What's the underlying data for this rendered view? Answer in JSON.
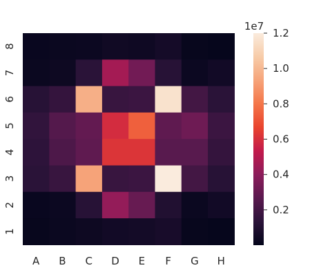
{
  "chart_data": {
    "type": "heatmap",
    "title": "",
    "xlabel": "",
    "ylabel": "",
    "x_categories": [
      "A",
      "B",
      "C",
      "D",
      "E",
      "F",
      "G",
      "H"
    ],
    "y_categories": [
      "8",
      "7",
      "6",
      "5",
      "4",
      "3",
      "2",
      "1"
    ],
    "values": [
      [
        200000,
        250000,
        300000,
        450000,
        400000,
        600000,
        150000,
        100000
      ],
      [
        250000,
        350000,
        1300000,
        4600000,
        3300000,
        1200000,
        300000,
        500000
      ],
      [
        1200000,
        1600000,
        9700000,
        1700000,
        1800000,
        11600000,
        2000000,
        1300000
      ],
      [
        1500000,
        2500000,
        2900000,
        5900000,
        7400000,
        2800000,
        3200000,
        1800000
      ],
      [
        1400000,
        2300000,
        2800000,
        6200000,
        6200000,
        2600000,
        2600000,
        1600000
      ],
      [
        1300000,
        1700000,
        9300000,
        1700000,
        1800000,
        12000000,
        2000000,
        1200000
      ],
      [
        200000,
        300000,
        1200000,
        4200000,
        3000000,
        1000000,
        250000,
        500000
      ],
      [
        150000,
        250000,
        350000,
        500000,
        550000,
        700000,
        150000,
        100000
      ]
    ],
    "colorbar": {
      "min": 0,
      "max": 12000000,
      "ticks": [
        0.2,
        0.4,
        0.6,
        0.8,
        1.0,
        1.2
      ],
      "tick_labels": [
        "0.2",
        "0.4",
        "0.6",
        "0.8",
        "1.0",
        "1.2"
      ],
      "multiplier_label": "1e7",
      "colormap": "rocket",
      "colormap_stops": [
        "#03051a",
        "#2b1339",
        "#5a1a4f",
        "#8c1c5b",
        "#c21a4b",
        "#e9442e",
        "#f47649",
        "#f6a47a",
        "#f7cca9",
        "#faebdd"
      ]
    }
  }
}
